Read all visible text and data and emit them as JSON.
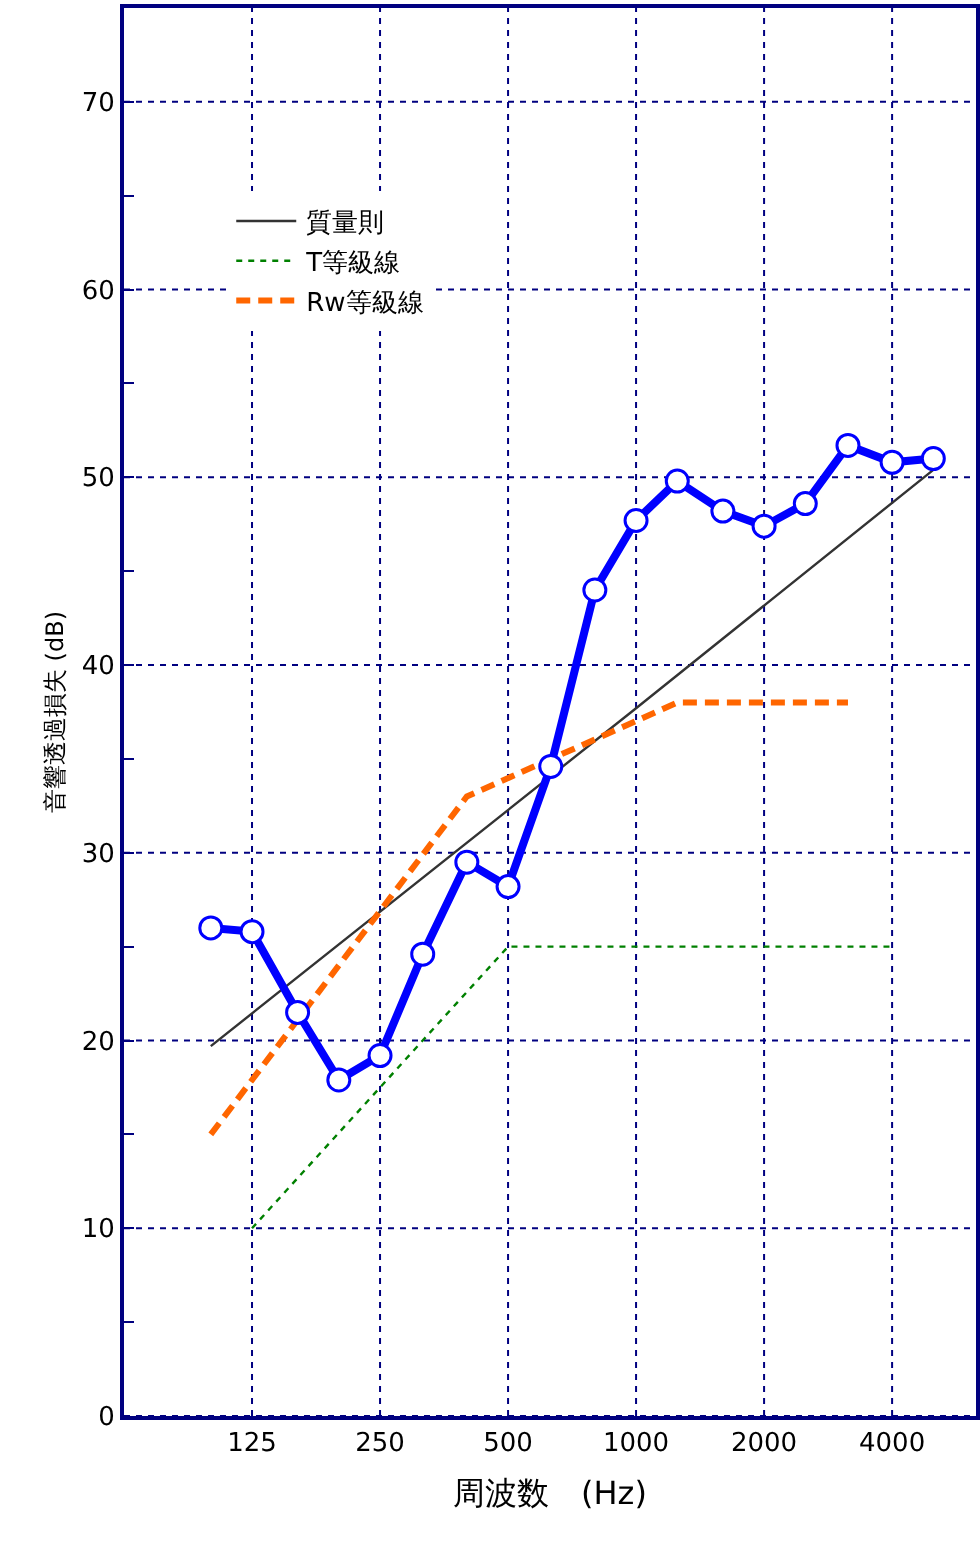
{
  "chart_data": {
    "type": "line",
    "xlabel": "周波数　(Hz)",
    "ylabel": "音響透過損失 (dB)",
    "log": "x",
    "xlim": [
      62.5,
      6300
    ],
    "xticks": [
      125,
      250,
      500,
      1000,
      2000,
      4000
    ],
    "ylim": [
      0,
      75
    ],
    "yticks": [
      0,
      {
        "value": 5,
        "label": null
      },
      10,
      {
        "value": 15,
        "label": null
      },
      20,
      {
        "value": 25,
        "label": null
      },
      30,
      {
        "value": 35,
        "label": null
      },
      40,
      {
        "value": 45,
        "label": null
      },
      50,
      {
        "value": 55,
        "label": null
      },
      60,
      {
        "value": 65,
        "label": null
      },
      70
    ],
    "grid": true,
    "legend": "top left",
    "series": [
      {
        "color": "#0000ff",
        "marker": "circle",
        "line_style": "solid",
        "x": [
          100,
          125,
          160,
          200,
          250,
          315,
          400,
          500,
          630,
          800,
          1000,
          1250,
          1600,
          2000,
          2500,
          3150,
          4000,
          5000
        ],
        "values": [
          26.0,
          25.8,
          21.5,
          17.9,
          19.2,
          24.6,
          29.5,
          28.2,
          34.6,
          44.0,
          47.7,
          49.8,
          48.2,
          47.4,
          48.6,
          51.7,
          50.8,
          51.0
        ]
      },
      {
        "name": "質量則",
        "color": "#333333",
        "marker": "none",
        "line_style": "solid",
        "x": [
          100,
          1000,
          5000
        ],
        "values": [
          19.7,
          37.7,
          50.4
        ]
      },
      {
        "name": "T等級線",
        "color": "#008000",
        "marker": "none",
        "line_style": "dotted",
        "x": [
          125,
          500,
          4000
        ],
        "values": [
          10,
          25,
          25
        ]
      },
      {
        "name": "Rw等級線",
        "color": "#ff6600",
        "marker": "none",
        "line_style": "dashed",
        "x": [
          100,
          400,
          1250,
          3150
        ],
        "values": [
          15,
          33,
          38,
          38
        ]
      }
    ]
  }
}
